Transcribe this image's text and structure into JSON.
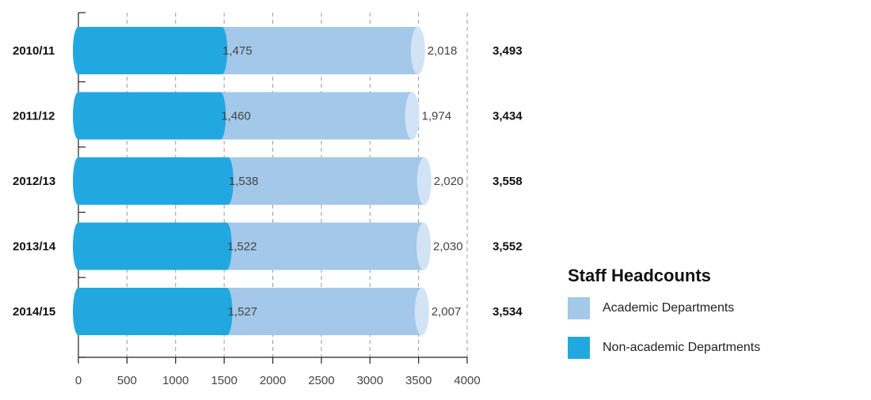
{
  "chart_data": {
    "type": "bar",
    "orientation": "horizontal",
    "stacked": true,
    "categories": [
      "2010/11",
      "2011/12",
      "2012/13",
      "2013/14",
      "2014/15"
    ],
    "series": [
      {
        "name": "Non-academic Departments",
        "values": [
          1475,
          1460,
          1538,
          1522,
          1527
        ],
        "labels": [
          "1,475",
          "1,460",
          "1,538",
          "1,522",
          "1,527"
        ],
        "color": "#22a8e0"
      },
      {
        "name": "Academic Departments",
        "values": [
          2018,
          1974,
          2020,
          2030,
          2007
        ],
        "labels": [
          "2,018",
          "1,974",
          "2,020",
          "2,030",
          "2,007"
        ],
        "color": "#a3c8e9"
      }
    ],
    "totals": [
      "3,493",
      "3,434",
      "3,558",
      "3,552",
      "3,534"
    ],
    "xlim": [
      0,
      4000
    ],
    "xticks": [
      "0",
      "500",
      "1000",
      "1500",
      "2000",
      "2500",
      "3000",
      "3500",
      "4000"
    ],
    "grid": true,
    "legend_position": "bottom-right"
  },
  "legend": {
    "title": "Staff Headcounts",
    "items": [
      {
        "label": "Academic Departments",
        "color": "#a3c8e9"
      },
      {
        "label": "Non-academic Departments",
        "color": "#22a8e0"
      }
    ]
  }
}
